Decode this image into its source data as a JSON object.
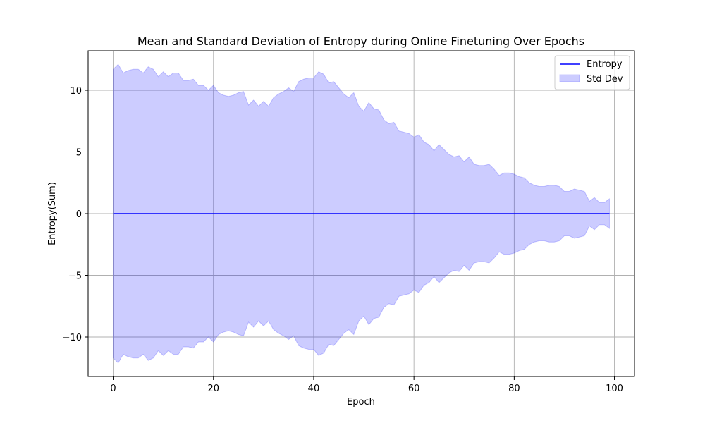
{
  "chart_data": {
    "type": "line",
    "title": "Mean and Standard Deviation of Entropy during Online Finetuning Over Epochs",
    "xlabel": "Epoch",
    "ylabel": "Entropy(Sum)",
    "xlim": [
      -5,
      104
    ],
    "ylim": [
      -13.2,
      13.2
    ],
    "x_ticks": [
      0,
      20,
      40,
      60,
      80,
      100
    ],
    "y_ticks": [
      -10,
      -5,
      0,
      5,
      10
    ],
    "y_tick_labels": [
      "−10",
      "−5",
      "0",
      "5",
      "10"
    ],
    "grid": true,
    "legend_position": "top-right",
    "colors": {
      "line": "#0000ff",
      "band_fill": "#0000ff",
      "band_alpha": 0.2
    },
    "series": [
      {
        "name": "Entropy",
        "kind": "line",
        "x": [
          0,
          99
        ],
        "y": [
          0,
          0
        ]
      },
      {
        "name": "Std Dev",
        "kind": "band",
        "x": [
          0,
          1,
          2,
          3,
          4,
          5,
          6,
          7,
          8,
          9,
          10,
          11,
          12,
          13,
          14,
          15,
          16,
          17,
          18,
          19,
          20,
          21,
          22,
          23,
          24,
          25,
          26,
          27,
          28,
          29,
          30,
          31,
          32,
          33,
          34,
          35,
          36,
          37,
          38,
          39,
          40,
          41,
          42,
          43,
          44,
          45,
          46,
          47,
          48,
          49,
          50,
          51,
          52,
          53,
          54,
          55,
          56,
          57,
          58,
          59,
          60,
          61,
          62,
          63,
          64,
          65,
          66,
          67,
          68,
          69,
          70,
          71,
          72,
          73,
          74,
          75,
          76,
          77,
          78,
          79,
          80,
          81,
          82,
          83,
          84,
          85,
          86,
          87,
          88,
          89,
          90,
          91,
          92,
          93,
          94,
          95,
          96,
          97,
          98,
          99
        ],
        "std": [
          11.7,
          12.1,
          11.4,
          11.6,
          11.7,
          11.7,
          11.4,
          11.9,
          11.7,
          11.1,
          11.5,
          11.1,
          11.4,
          11.4,
          10.8,
          10.8,
          10.9,
          10.4,
          10.4,
          10.0,
          10.4,
          9.8,
          9.6,
          9.5,
          9.6,
          9.8,
          9.9,
          8.8,
          9.2,
          8.7,
          9.1,
          8.7,
          9.4,
          9.7,
          9.9,
          10.2,
          9.9,
          10.7,
          10.9,
          11.0,
          11.0,
          11.5,
          11.3,
          10.6,
          10.7,
          10.2,
          9.7,
          9.4,
          9.8,
          8.7,
          8.3,
          9.0,
          8.5,
          8.4,
          7.6,
          7.3,
          7.4,
          6.7,
          6.6,
          6.5,
          6.2,
          6.4,
          5.8,
          5.6,
          5.1,
          5.6,
          5.2,
          4.8,
          4.6,
          4.7,
          4.2,
          4.6,
          4.0,
          3.9,
          3.9,
          4.0,
          3.6,
          3.1,
          3.3,
          3.3,
          3.2,
          3.0,
          2.9,
          2.5,
          2.3,
          2.2,
          2.2,
          2.3,
          2.3,
          2.2,
          1.8,
          1.8,
          2.0,
          1.9,
          1.8,
          1.0,
          1.3,
          0.9,
          0.9,
          1.2
        ]
      }
    ],
    "legend": [
      {
        "label": "Entropy",
        "kind": "line"
      },
      {
        "label": "Std Dev",
        "kind": "patch"
      }
    ]
  }
}
